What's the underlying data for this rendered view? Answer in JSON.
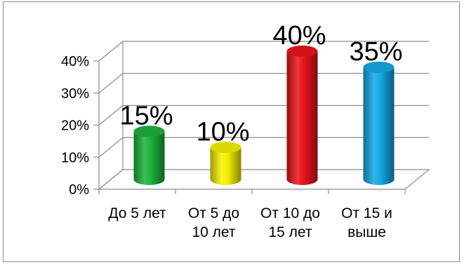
{
  "chart_data": {
    "type": "bar",
    "title": "",
    "xlabel": "",
    "ylabel": "",
    "ylim": [
      0,
      40
    ],
    "yticks": [
      "0%",
      "10%",
      "20%",
      "30%",
      "40%"
    ],
    "categories": [
      [
        "До 5 лет"
      ],
      [
        "От 5 до",
        "10 лет"
      ],
      [
        "От 10 до",
        "15 лет"
      ],
      [
        "От 15 и",
        "выше"
      ]
    ],
    "values": [
      15,
      10,
      40,
      35
    ],
    "data_labels": [
      "15%",
      "10%",
      "40%",
      "35%"
    ],
    "colors": [
      "#1db33b",
      "#f5f000",
      "#e8141a",
      "#14a8e6"
    ],
    "grid": true,
    "legend": "none",
    "style": "3d-cylinder"
  }
}
